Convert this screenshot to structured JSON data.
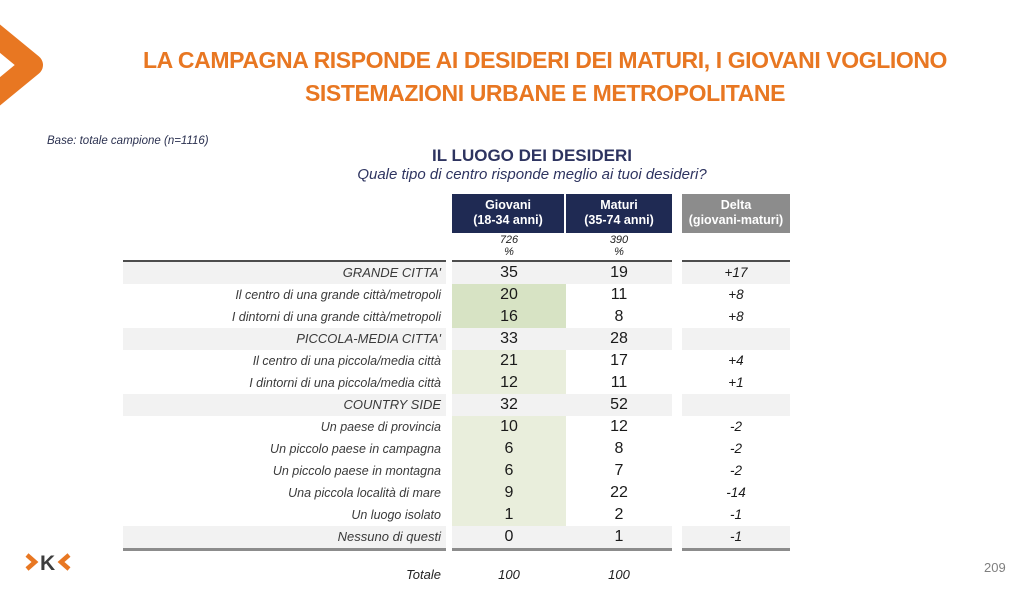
{
  "slide": {
    "title_line1": "LA CAMPAGNA RISPONDE AI DESIDERI DEI MATURI, I GIOVANI VOGLIONO",
    "title_line2": "SISTEMAZIONI URBANE E METROPOLITANE",
    "base_note": "Base: totale campione (n=1116)",
    "page_number": "209",
    "logo_letter": "K"
  },
  "colors": {
    "accent": "#E87722",
    "navy": "#1F2A53",
    "header_gray": "#8C8C8C",
    "row_gray": "#F2F2F2",
    "green_strong": "#D7E3C4",
    "green_light": "#E9EEDC",
    "line_dark": "#4D4D4D",
    "line_gray": "#8C8C8C"
  },
  "table": {
    "title": "IL LUOGO DEI DESIDERI",
    "question": "Quale tipo di centro risponde meglio ai tuoi desideri?",
    "header": {
      "giovani_title": "Giovani",
      "giovani_sub": "(18-34 anni)",
      "giovani_base": "726",
      "maturi_title": "Maturi",
      "maturi_sub": "(35-74 anni)",
      "maturi_base": "390",
      "delta_title": "Delta",
      "delta_sub": "(giovani-maturi)",
      "percent": "%"
    },
    "rows": [
      {
        "label": "GRANDE CITTA'",
        "giovani": "35",
        "maturi": "19",
        "delta": "+17",
        "type": "category"
      },
      {
        "label": "Il centro di una grande città/metropoli",
        "giovani": "20",
        "maturi": "11",
        "delta": "+8",
        "type": "sub-strong"
      },
      {
        "label": "I dintorni di una grande città/metropoli",
        "giovani": "16",
        "maturi": "8",
        "delta": "+8",
        "type": "sub-strong"
      },
      {
        "label": "PICCOLA-MEDIA CITTA'",
        "giovani": "33",
        "maturi": "28",
        "delta": "",
        "type": "category"
      },
      {
        "label": "Il centro di una piccola/media città",
        "giovani": "21",
        "maturi": "17",
        "delta": "+4",
        "type": "sub"
      },
      {
        "label": "I dintorni di una piccola/media città",
        "giovani": "12",
        "maturi": "11",
        "delta": "+1",
        "type": "sub"
      },
      {
        "label": "COUNTRY SIDE",
        "giovani": "32",
        "maturi": "52",
        "delta": "",
        "type": "category"
      },
      {
        "label": "Un paese di provincia",
        "giovani": "10",
        "maturi": "12",
        "delta": "-2",
        "type": "sub"
      },
      {
        "label": "Un piccolo paese in campagna",
        "giovani": "6",
        "maturi": "8",
        "delta": "-2",
        "type": "sub"
      },
      {
        "label": "Un piccolo paese in montagna",
        "giovani": "6",
        "maturi": "7",
        "delta": "-2",
        "type": "sub"
      },
      {
        "label": "Una piccola località di mare",
        "giovani": "9",
        "maturi": "22",
        "delta": "-14",
        "type": "sub"
      },
      {
        "label": "Un luogo isolato",
        "giovani": "1",
        "maturi": "2",
        "delta": "-1",
        "type": "sub"
      },
      {
        "label": "Nessuno di questi",
        "giovani": "0",
        "maturi": "1",
        "delta": "-1",
        "type": "category"
      }
    ],
    "total_label": "Totale",
    "total_giovani": "100",
    "total_maturi": "100"
  },
  "chart_data": {
    "type": "table",
    "title": "IL LUOGO DEI DESIDERI",
    "subtitle": "Quale tipo di centro risponde meglio ai tuoi desideri?",
    "base": "totale campione (n=1116)",
    "columns": [
      "Giovani (18-34 anni) n=726 %",
      "Maturi (35-74 anni) n=390 %",
      "Delta (giovani-maturi)"
    ],
    "categories": [
      "GRANDE CITTA'",
      "Il centro di una grande città/metropoli",
      "I dintorni di una grande città/metropoli",
      "PICCOLA-MEDIA CITTA'",
      "Il centro di una piccola/media città",
      "I dintorni di una piccola/media città",
      "COUNTRY SIDE",
      "Un paese di provincia",
      "Un piccolo paese in campagna",
      "Un piccolo paese in montagna",
      "Una piccola località di mare",
      "Un luogo isolato",
      "Nessuno di questi"
    ],
    "series": [
      {
        "name": "Giovani (18-34 anni)",
        "values": [
          35,
          20,
          16,
          33,
          21,
          12,
          32,
          10,
          6,
          6,
          9,
          1,
          0
        ],
        "total": 100
      },
      {
        "name": "Maturi (35-74 anni)",
        "values": [
          19,
          11,
          8,
          28,
          17,
          11,
          52,
          12,
          8,
          7,
          22,
          2,
          1
        ],
        "total": 100
      },
      {
        "name": "Delta (giovani-maturi)",
        "values": [
          17,
          8,
          8,
          null,
          4,
          1,
          null,
          -2,
          -2,
          -2,
          -14,
          -1,
          -1
        ]
      }
    ]
  }
}
